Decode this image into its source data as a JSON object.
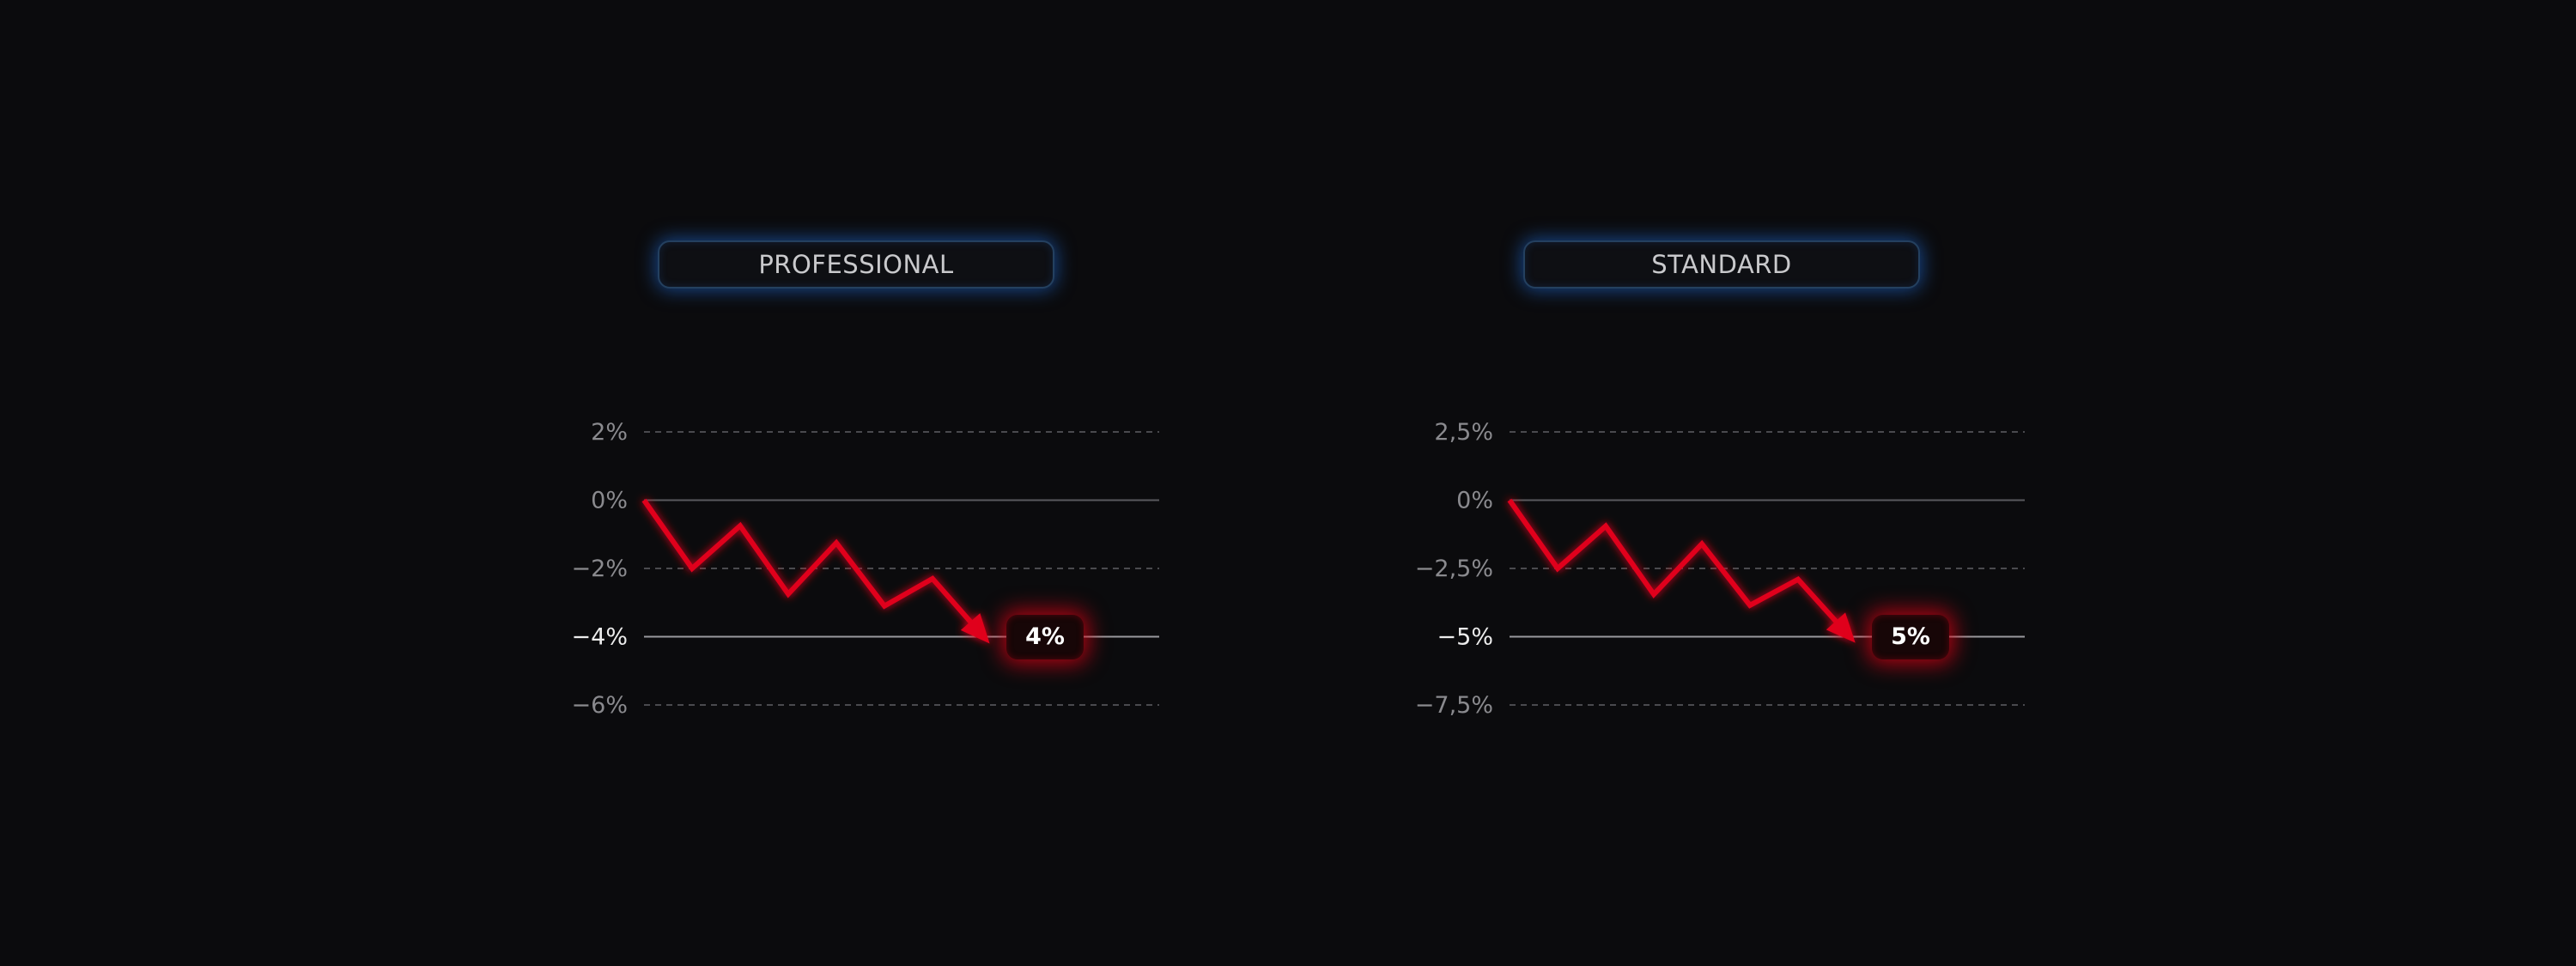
{
  "chart_data": [
    {
      "type": "line",
      "title": "PROFESSIONAL",
      "y_ticks": [
        2,
        0,
        -2,
        -4,
        -6
      ],
      "y_tick_labels": [
        "2%",
        "0%",
        "−2%",
        "−4%",
        "−6%"
      ],
      "highlight_tick": -4,
      "ylim": [
        -6,
        2
      ],
      "grid": true,
      "series": [
        {
          "x": [
            0,
            1,
            2,
            3,
            4,
            5,
            6,
            7
          ],
          "y": [
            0,
            -2,
            -0.75,
            -2.75,
            -1.25,
            -3.1,
            -2.3,
            -3.9
          ]
        }
      ],
      "end_arrow": true,
      "callout": "4%",
      "line_color": "#e0061b"
    },
    {
      "type": "line",
      "title": "STANDARD",
      "y_ticks": [
        2.5,
        0,
        -2.5,
        -5,
        -7.5
      ],
      "y_tick_labels": [
        "2,5%",
        "0%",
        "−2,5%",
        "−5%",
        "−7,5%"
      ],
      "highlight_tick": -5,
      "ylim": [
        -7.5,
        2.5
      ],
      "grid": true,
      "series": [
        {
          "x": [
            0,
            1,
            2,
            3,
            4,
            5,
            6,
            7
          ],
          "y": [
            0,
            -2.5,
            -0.95,
            -3.45,
            -1.6,
            -3.85,
            -2.9,
            -4.85
          ]
        }
      ],
      "end_arrow": true,
      "callout": "5%",
      "line_color": "#e0061b"
    }
  ]
}
